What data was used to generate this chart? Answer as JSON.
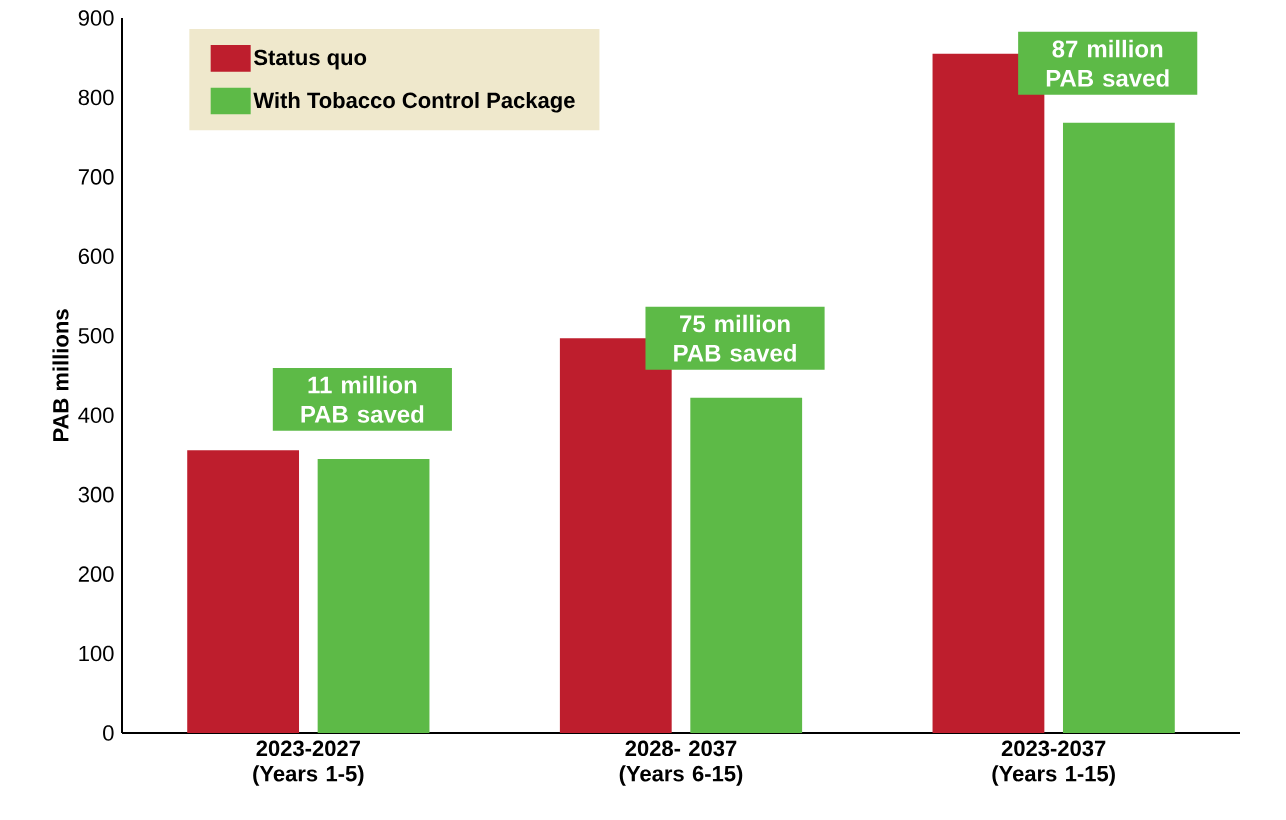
{
  "chart_data": {
    "type": "bar",
    "ylabel": "PAB millions",
    "categories": [
      "2023-2027 (Years 1-5)",
      "2028- 2037 (Years 6-15)",
      "2023-2037 (Years 1-15)"
    ],
    "series": [
      {
        "name": "Status quo",
        "color": "#be1e2d",
        "values": [
          356,
          497,
          855
        ]
      },
      {
        "name": "With Tobacco Control Package",
        "color": "#5dba47",
        "values": [
          345,
          422,
          768
        ]
      }
    ],
    "ylim": [
      0,
      900
    ],
    "yticks": [
      0,
      100,
      200,
      300,
      400,
      500,
      600,
      700,
      800,
      900
    ],
    "legend": "top left",
    "annotations": [
      "11 million PAB saved",
      "75 million PAB saved",
      "87 million PAB saved"
    ]
  }
}
